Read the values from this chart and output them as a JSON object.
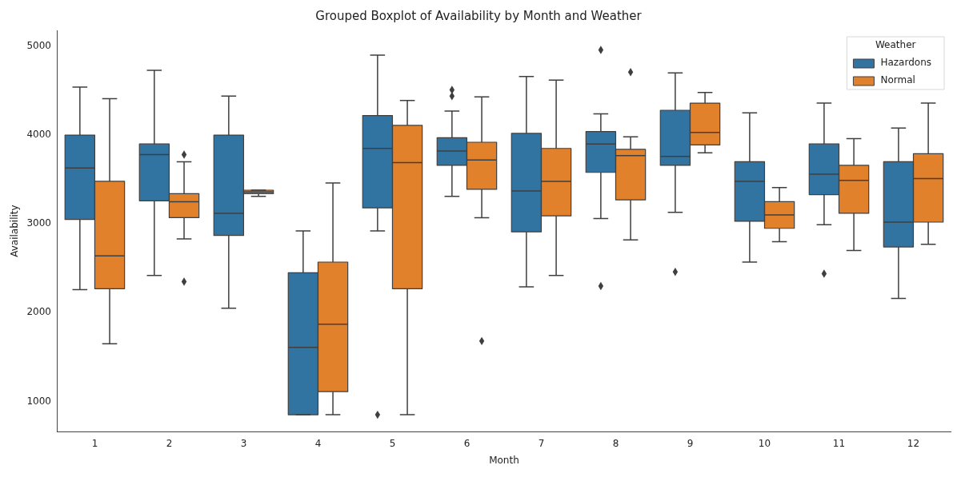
{
  "chart_data": {
    "type": "box",
    "title": "Grouped Boxplot of Availability by Month and Weather",
    "xlabel": "Month",
    "ylabel": "Availability",
    "legend_title": "Weather",
    "legend": "top right",
    "grid": false,
    "marker": "diamond",
    "categories": [
      "1",
      "2",
      "3",
      "4",
      "5",
      "6",
      "7",
      "8",
      "9",
      "10",
      "11",
      "12"
    ],
    "ylim": [
      660,
      5180
    ],
    "yticks": [
      1000,
      2000,
      3000,
      4000,
      5000
    ],
    "series": [
      {
        "name": "Hazardons",
        "color": "#3274a1",
        "boxes": [
          {
            "low": 2260,
            "q1": 3050,
            "median": 3630,
            "q3": 4000,
            "high": 4540
          },
          {
            "low": 2420,
            "q1": 3260,
            "median": 3780,
            "q3": 3900,
            "high": 4730
          },
          {
            "low": 2050,
            "q1": 2870,
            "median": 3120,
            "q3": 4000,
            "high": 4440
          },
          {
            "low": 850,
            "q1": 850,
            "median": 1610,
            "q3": 2450,
            "high": 2920
          },
          {
            "low": 2920,
            "q1": 3180,
            "median": 3850,
            "q3": 4220,
            "high": 4900,
            "outliers": [
              850
            ]
          },
          {
            "low": 3310,
            "q1": 3660,
            "median": 3820,
            "q3": 3970,
            "high": 4270,
            "outliers": [
              4510,
              4440
            ]
          },
          {
            "low": 2290,
            "q1": 2910,
            "median": 3370,
            "q3": 4020,
            "high": 4660
          },
          {
            "low": 3060,
            "q1": 3580,
            "median": 3900,
            "q3": 4040,
            "high": 4240,
            "outliers": [
              4960,
              2300
            ]
          },
          {
            "low": 3130,
            "q1": 3660,
            "median": 3760,
            "q3": 4280,
            "high": 4700,
            "outliers": [
              2460
            ]
          },
          {
            "low": 2570,
            "q1": 3030,
            "median": 3480,
            "q3": 3700,
            "high": 4250
          },
          {
            "low": 2990,
            "q1": 3330,
            "median": 3560,
            "q3": 3900,
            "high": 4360,
            "outliers": [
              2440
            ]
          },
          {
            "low": 2160,
            "q1": 2740,
            "median": 3020,
            "q3": 3700,
            "high": 4080
          }
        ]
      },
      {
        "name": "Normal",
        "color": "#e1812c",
        "boxes": [
          {
            "low": 1650,
            "q1": 2270,
            "median": 2640,
            "q3": 3480,
            "high": 4410
          },
          {
            "low": 2830,
            "q1": 3070,
            "median": 3250,
            "q3": 3340,
            "high": 3700,
            "outliers": [
              3780,
              2350
            ]
          },
          {
            "low": 3310,
            "q1": 3340,
            "median": 3360,
            "q3": 3380,
            "high": 3380
          },
          {
            "low": 850,
            "q1": 1110,
            "median": 1870,
            "q3": 2570,
            "high": 3460
          },
          {
            "low": 850,
            "q1": 2270,
            "median": 3690,
            "q3": 4110,
            "high": 4390
          },
          {
            "low": 3070,
            "q1": 3390,
            "median": 3720,
            "q3": 3920,
            "high": 4430,
            "outliers": [
              1680
            ]
          },
          {
            "low": 2420,
            "q1": 3090,
            "median": 3480,
            "q3": 3850,
            "high": 4620
          },
          {
            "low": 2820,
            "q1": 3270,
            "median": 3770,
            "q3": 3840,
            "high": 3980,
            "outliers": [
              4710
            ]
          },
          {
            "low": 3800,
            "q1": 3890,
            "median": 4030,
            "q3": 4360,
            "high": 4480
          },
          {
            "low": 2800,
            "q1": 2950,
            "median": 3100,
            "q3": 3250,
            "high": 3410
          },
          {
            "low": 2700,
            "q1": 3120,
            "median": 3490,
            "q3": 3660,
            "high": 3960
          },
          {
            "low": 2770,
            "q1": 3020,
            "median": 3510,
            "q3": 3790,
            "high": 4360
          }
        ]
      }
    ]
  }
}
